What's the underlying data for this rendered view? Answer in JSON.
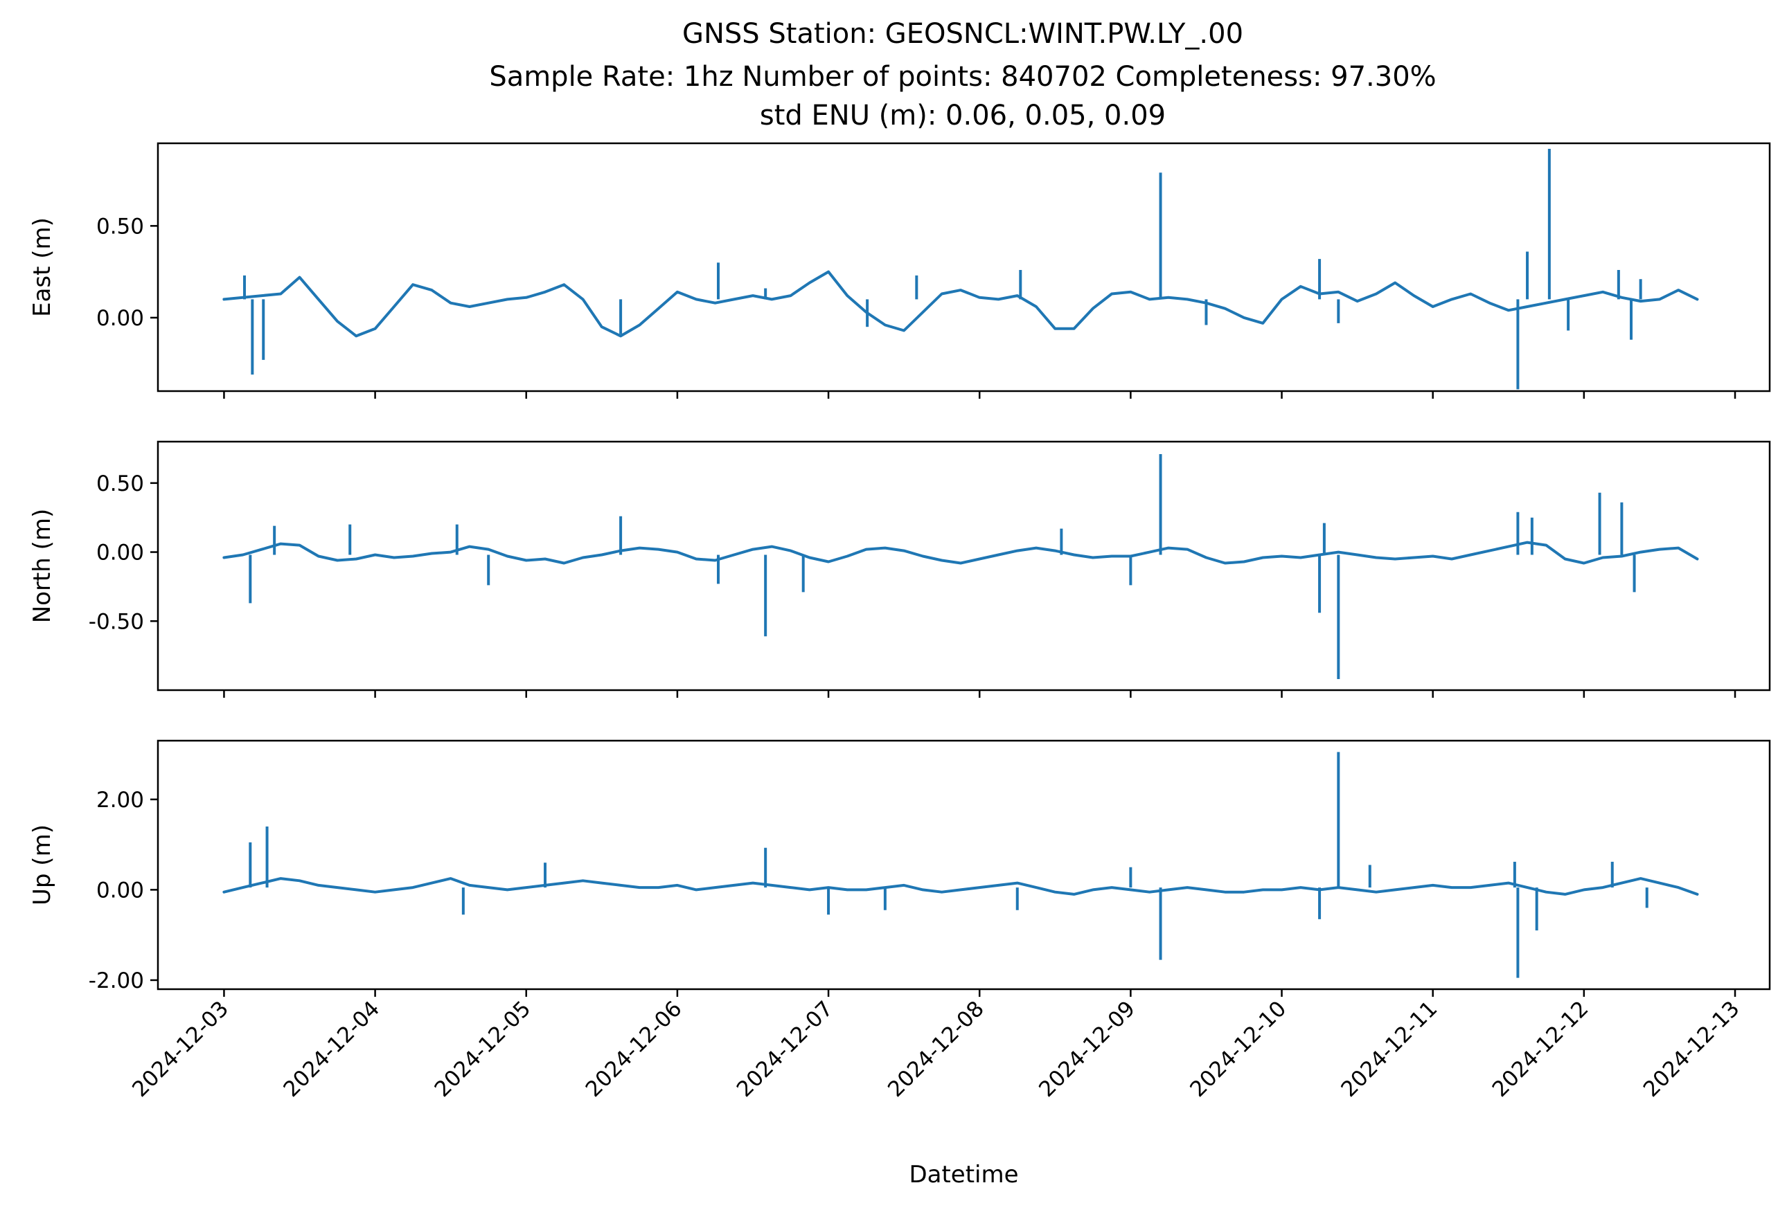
{
  "title_lines": [
    "GNSS Station: GEOSNCL:WINT.PW.LY_.00",
    "Sample Rate: 1hz   Number of points: 840702    Completeness:  97.30%",
    "std ENU (m):  0.06, 0.05, 0.09"
  ],
  "colors": {
    "series": "#1f77b4",
    "background": "#ffffff",
    "axes": "#000000"
  },
  "chart_data": [
    {
      "type": "line",
      "ylabel": "East (m)",
      "xlabel": "",
      "ylim": [
        -0.4,
        0.95
      ],
      "yticks": [
        0.0,
        0.5
      ],
      "ytick_labels": [
        "0.00",
        "0.50"
      ],
      "xlim": [
        "2024-12-02T13:30",
        "2024-12-13T05:30"
      ],
      "grid": false,
      "x": [
        "2024-12-03T00:00",
        "2024-12-03T03:00",
        "2024-12-03T06:00",
        "2024-12-03T09:00",
        "2024-12-03T12:00",
        "2024-12-03T15:00",
        "2024-12-03T18:00",
        "2024-12-03T21:00",
        "2024-12-04T00:00",
        "2024-12-04T03:00",
        "2024-12-04T06:00",
        "2024-12-04T09:00",
        "2024-12-04T12:00",
        "2024-12-04T15:00",
        "2024-12-04T18:00",
        "2024-12-04T21:00",
        "2024-12-05T00:00",
        "2024-12-05T03:00",
        "2024-12-05T06:00",
        "2024-12-05T09:00",
        "2024-12-05T12:00",
        "2024-12-05T15:00",
        "2024-12-05T18:00",
        "2024-12-05T21:00",
        "2024-12-06T00:00",
        "2024-12-06T03:00",
        "2024-12-06T06:00",
        "2024-12-06T09:00",
        "2024-12-06T12:00",
        "2024-12-06T15:00",
        "2024-12-06T18:00",
        "2024-12-06T21:00",
        "2024-12-07T00:00",
        "2024-12-07T03:00",
        "2024-12-07T06:00",
        "2024-12-07T09:00",
        "2024-12-07T12:00",
        "2024-12-07T15:00",
        "2024-12-07T18:00",
        "2024-12-07T21:00",
        "2024-12-08T00:00",
        "2024-12-08T03:00",
        "2024-12-08T06:00",
        "2024-12-08T09:00",
        "2024-12-08T12:00",
        "2024-12-08T15:00",
        "2024-12-08T18:00",
        "2024-12-08T21:00",
        "2024-12-09T00:00",
        "2024-12-09T03:00",
        "2024-12-09T06:00",
        "2024-12-09T09:00",
        "2024-12-09T12:00",
        "2024-12-09T15:00",
        "2024-12-09T18:00",
        "2024-12-09T21:00",
        "2024-12-10T00:00",
        "2024-12-10T03:00",
        "2024-12-10T06:00",
        "2024-12-10T09:00",
        "2024-12-10T12:00",
        "2024-12-10T15:00",
        "2024-12-10T18:00",
        "2024-12-10T21:00",
        "2024-12-11T00:00",
        "2024-12-11T03:00",
        "2024-12-11T06:00",
        "2024-12-11T09:00",
        "2024-12-11T12:00",
        "2024-12-11T15:00",
        "2024-12-11T18:00",
        "2024-12-11T21:00",
        "2024-12-12T00:00",
        "2024-12-12T03:00",
        "2024-12-12T06:00",
        "2024-12-12T09:00",
        "2024-12-12T12:00",
        "2024-12-12T15:00",
        "2024-12-12T18:00"
      ],
      "y": [
        0.1,
        0.11,
        0.12,
        0.13,
        0.22,
        0.1,
        -0.02,
        -0.1,
        -0.06,
        0.06,
        0.18,
        0.15,
        0.08,
        0.06,
        0.08,
        0.1,
        0.11,
        0.14,
        0.18,
        0.1,
        -0.05,
        -0.1,
        -0.04,
        0.05,
        0.14,
        0.1,
        0.08,
        0.1,
        0.12,
        0.1,
        0.12,
        0.19,
        0.25,
        0.12,
        0.03,
        -0.04,
        -0.07,
        0.03,
        0.13,
        0.15,
        0.11,
        0.1,
        0.12,
        0.06,
        -0.06,
        -0.06,
        0.05,
        0.13,
        0.14,
        0.1,
        0.11,
        0.1,
        0.08,
        0.05,
        0.0,
        -0.03,
        0.1,
        0.17,
        0.13,
        0.14,
        0.09,
        0.13,
        0.19,
        0.12,
        0.06,
        0.1,
        0.13,
        0.08,
        0.04,
        0.06,
        0.08,
        0.1,
        0.12,
        0.14,
        0.11,
        0.09,
        0.1,
        0.15,
        0.1
      ],
      "spikes": [
        {
          "x": "2024-12-03T04:30",
          "y": -0.31
        },
        {
          "x": "2024-12-03T06:15",
          "y": -0.23
        },
        {
          "x": "2024-12-03T03:15",
          "y": 0.23
        },
        {
          "x": "2024-12-05T15:00",
          "y": -0.09
        },
        {
          "x": "2024-12-06T06:30",
          "y": 0.3
        },
        {
          "x": "2024-12-06T14:00",
          "y": 0.16
        },
        {
          "x": "2024-12-07T06:10",
          "y": -0.05
        },
        {
          "x": "2024-12-07T14:00",
          "y": 0.23
        },
        {
          "x": "2024-12-08T06:30",
          "y": 0.26
        },
        {
          "x": "2024-12-09T04:45",
          "y": 0.79
        },
        {
          "x": "2024-12-09T12:00",
          "y": -0.04
        },
        {
          "x": "2024-12-10T06:00",
          "y": 0.32
        },
        {
          "x": "2024-12-10T09:00",
          "y": -0.03
        },
        {
          "x": "2024-12-11T13:30",
          "y": -0.39
        },
        {
          "x": "2024-12-11T15:00",
          "y": 0.36
        },
        {
          "x": "2024-12-11T18:30",
          "y": 0.92
        },
        {
          "x": "2024-12-11T21:30",
          "y": -0.07
        },
        {
          "x": "2024-12-12T05:30",
          "y": 0.26
        },
        {
          "x": "2024-12-12T07:30",
          "y": -0.12
        },
        {
          "x": "2024-12-12T09:00",
          "y": 0.21
        }
      ]
    },
    {
      "type": "line",
      "ylabel": "North (m)",
      "xlabel": "",
      "ylim": [
        -1.0,
        0.8
      ],
      "yticks": [
        -0.5,
        0.0,
        0.5
      ],
      "ytick_labels": [
        "-0.50",
        "0.00",
        "0.50"
      ],
      "xlim": [
        "2024-12-02T13:30",
        "2024-12-13T05:30"
      ],
      "grid": false,
      "x": [
        "2024-12-03T00:00",
        "2024-12-03T03:00",
        "2024-12-03T06:00",
        "2024-12-03T09:00",
        "2024-12-03T12:00",
        "2024-12-03T15:00",
        "2024-12-03T18:00",
        "2024-12-03T21:00",
        "2024-12-04T00:00",
        "2024-12-04T03:00",
        "2024-12-04T06:00",
        "2024-12-04T09:00",
        "2024-12-04T12:00",
        "2024-12-04T15:00",
        "2024-12-04T18:00",
        "2024-12-04T21:00",
        "2024-12-05T00:00",
        "2024-12-05T03:00",
        "2024-12-05T06:00",
        "2024-12-05T09:00",
        "2024-12-05T12:00",
        "2024-12-05T15:00",
        "2024-12-05T18:00",
        "2024-12-05T21:00",
        "2024-12-06T00:00",
        "2024-12-06T03:00",
        "2024-12-06T06:00",
        "2024-12-06T09:00",
        "2024-12-06T12:00",
        "2024-12-06T15:00",
        "2024-12-06T18:00",
        "2024-12-06T21:00",
        "2024-12-07T00:00",
        "2024-12-07T03:00",
        "2024-12-07T06:00",
        "2024-12-07T09:00",
        "2024-12-07T12:00",
        "2024-12-07T15:00",
        "2024-12-07T18:00",
        "2024-12-07T21:00",
        "2024-12-08T00:00",
        "2024-12-08T03:00",
        "2024-12-08T06:00",
        "2024-12-08T09:00",
        "2024-12-08T12:00",
        "2024-12-08T15:00",
        "2024-12-08T18:00",
        "2024-12-08T21:00",
        "2024-12-09T00:00",
        "2024-12-09T03:00",
        "2024-12-09T06:00",
        "2024-12-09T09:00",
        "2024-12-09T12:00",
        "2024-12-09T15:00",
        "2024-12-09T18:00",
        "2024-12-09T21:00",
        "2024-12-10T00:00",
        "2024-12-10T03:00",
        "2024-12-10T06:00",
        "2024-12-10T09:00",
        "2024-12-10T12:00",
        "2024-12-10T15:00",
        "2024-12-10T18:00",
        "2024-12-10T21:00",
        "2024-12-11T00:00",
        "2024-12-11T03:00",
        "2024-12-11T06:00",
        "2024-12-11T09:00",
        "2024-12-11T12:00",
        "2024-12-11T15:00",
        "2024-12-11T18:00",
        "2024-12-11T21:00",
        "2024-12-12T00:00",
        "2024-12-12T03:00",
        "2024-12-12T06:00",
        "2024-12-12T09:00",
        "2024-12-12T12:00",
        "2024-12-12T15:00",
        "2024-12-12T18:00"
      ],
      "y": [
        -0.04,
        -0.02,
        0.02,
        0.06,
        0.05,
        -0.03,
        -0.06,
        -0.05,
        -0.02,
        -0.04,
        -0.03,
        -0.01,
        0.0,
        0.04,
        0.02,
        -0.03,
        -0.06,
        -0.05,
        -0.08,
        -0.04,
        -0.02,
        0.01,
        0.03,
        0.02,
        0.0,
        -0.05,
        -0.06,
        -0.02,
        0.02,
        0.04,
        0.01,
        -0.04,
        -0.07,
        -0.03,
        0.02,
        0.03,
        0.01,
        -0.03,
        -0.06,
        -0.08,
        -0.05,
        -0.02,
        0.01,
        0.03,
        0.01,
        -0.02,
        -0.04,
        -0.03,
        -0.03,
        0.0,
        0.03,
        0.02,
        -0.04,
        -0.08,
        -0.07,
        -0.04,
        -0.03,
        -0.04,
        -0.02,
        0.0,
        -0.02,
        -0.04,
        -0.05,
        -0.04,
        -0.03,
        -0.05,
        -0.02,
        0.01,
        0.04,
        0.07,
        0.05,
        -0.05,
        -0.08,
        -0.04,
        -0.03,
        0.0,
        0.02,
        0.03,
        -0.05
      ],
      "spikes": [
        {
          "x": "2024-12-03T04:10",
          "y": -0.37
        },
        {
          "x": "2024-12-03T08:00",
          "y": 0.19
        },
        {
          "x": "2024-12-03T20:00",
          "y": 0.2
        },
        {
          "x": "2024-12-04T13:00",
          "y": 0.2
        },
        {
          "x": "2024-12-04T18:00",
          "y": -0.24
        },
        {
          "x": "2024-12-05T15:00",
          "y": 0.26
        },
        {
          "x": "2024-12-06T06:30",
          "y": -0.23
        },
        {
          "x": "2024-12-06T14:00",
          "y": -0.61
        },
        {
          "x": "2024-12-06T20:00",
          "y": -0.29
        },
        {
          "x": "2024-12-08T13:00",
          "y": 0.17
        },
        {
          "x": "2024-12-09T00:00",
          "y": -0.24
        },
        {
          "x": "2024-12-09T04:45",
          "y": 0.71
        },
        {
          "x": "2024-12-10T06:00",
          "y": -0.44
        },
        {
          "x": "2024-12-10T06:45",
          "y": 0.21
        },
        {
          "x": "2024-12-10T09:00",
          "y": -0.92
        },
        {
          "x": "2024-12-11T13:30",
          "y": 0.29
        },
        {
          "x": "2024-12-11T15:45",
          "y": 0.25
        },
        {
          "x": "2024-12-12T02:30",
          "y": 0.43
        },
        {
          "x": "2024-12-12T06:00",
          "y": 0.36
        },
        {
          "x": "2024-12-12T08:00",
          "y": -0.29
        }
      ]
    },
    {
      "type": "line",
      "ylabel": "Up (m)",
      "xlabel": "Datetime",
      "ylim": [
        -2.2,
        3.3
      ],
      "yticks": [
        -2.0,
        0.0,
        2.0
      ],
      "ytick_labels": [
        "-2.00",
        "0.00",
        "2.00"
      ],
      "xlim": [
        "2024-12-02T13:30",
        "2024-12-13T05:30"
      ],
      "xticks": [
        "2024-12-03",
        "2024-12-04",
        "2024-12-05",
        "2024-12-06",
        "2024-12-07",
        "2024-12-08",
        "2024-12-09",
        "2024-12-10",
        "2024-12-11",
        "2024-12-12",
        "2024-12-13"
      ],
      "grid": false,
      "x": [
        "2024-12-03T00:00",
        "2024-12-03T03:00",
        "2024-12-03T06:00",
        "2024-12-03T09:00",
        "2024-12-03T12:00",
        "2024-12-03T15:00",
        "2024-12-03T18:00",
        "2024-12-03T21:00",
        "2024-12-04T00:00",
        "2024-12-04T03:00",
        "2024-12-04T06:00",
        "2024-12-04T09:00",
        "2024-12-04T12:00",
        "2024-12-04T15:00",
        "2024-12-04T18:00",
        "2024-12-04T21:00",
        "2024-12-05T00:00",
        "2024-12-05T03:00",
        "2024-12-05T06:00",
        "2024-12-05T09:00",
        "2024-12-05T12:00",
        "2024-12-05T15:00",
        "2024-12-05T18:00",
        "2024-12-05T21:00",
        "2024-12-06T00:00",
        "2024-12-06T03:00",
        "2024-12-06T06:00",
        "2024-12-06T09:00",
        "2024-12-06T12:00",
        "2024-12-06T15:00",
        "2024-12-06T18:00",
        "2024-12-06T21:00",
        "2024-12-07T00:00",
        "2024-12-07T03:00",
        "2024-12-07T06:00",
        "2024-12-07T09:00",
        "2024-12-07T12:00",
        "2024-12-07T15:00",
        "2024-12-07T18:00",
        "2024-12-07T21:00",
        "2024-12-08T00:00",
        "2024-12-08T03:00",
        "2024-12-08T06:00",
        "2024-12-08T09:00",
        "2024-12-08T12:00",
        "2024-12-08T15:00",
        "2024-12-08T18:00",
        "2024-12-08T21:00",
        "2024-12-09T00:00",
        "2024-12-09T03:00",
        "2024-12-09T06:00",
        "2024-12-09T09:00",
        "2024-12-09T12:00",
        "2024-12-09T15:00",
        "2024-12-09T18:00",
        "2024-12-09T21:00",
        "2024-12-10T00:00",
        "2024-12-10T03:00",
        "2024-12-10T06:00",
        "2024-12-10T09:00",
        "2024-12-10T12:00",
        "2024-12-10T15:00",
        "2024-12-10T18:00",
        "2024-12-10T21:00",
        "2024-12-11T00:00",
        "2024-12-11T03:00",
        "2024-12-11T06:00",
        "2024-12-11T09:00",
        "2024-12-11T12:00",
        "2024-12-11T15:00",
        "2024-12-11T18:00",
        "2024-12-11T21:00",
        "2024-12-12T00:00",
        "2024-12-12T03:00",
        "2024-12-12T06:00",
        "2024-12-12T09:00",
        "2024-12-12T12:00",
        "2024-12-12T15:00",
        "2024-12-12T18:00"
      ],
      "y": [
        -0.05,
        0.05,
        0.15,
        0.25,
        0.2,
        0.1,
        0.05,
        0.0,
        -0.05,
        0.0,
        0.05,
        0.15,
        0.25,
        0.1,
        0.05,
        0.0,
        0.05,
        0.1,
        0.15,
        0.2,
        0.15,
        0.1,
        0.05,
        0.05,
        0.1,
        0.0,
        0.05,
        0.1,
        0.15,
        0.1,
        0.05,
        0.0,
        0.05,
        0.0,
        0.0,
        0.05,
        0.1,
        0.0,
        -0.05,
        0.0,
        0.05,
        0.1,
        0.15,
        0.05,
        -0.05,
        -0.1,
        0.0,
        0.05,
        0.0,
        -0.05,
        0.0,
        0.05,
        0.0,
        -0.05,
        -0.05,
        0.0,
        0.0,
        0.05,
        0.0,
        0.05,
        0.0,
        -0.05,
        0.0,
        0.05,
        0.1,
        0.05,
        0.05,
        0.1,
        0.15,
        0.05,
        -0.05,
        -0.1,
        0.0,
        0.05,
        0.15,
        0.25,
        0.15,
        0.05,
        -0.1
      ],
      "spikes": [
        {
          "x": "2024-12-03T04:10",
          "y": 1.05
        },
        {
          "x": "2024-12-03T06:50",
          "y": 1.4
        },
        {
          "x": "2024-12-04T14:00",
          "y": -0.55
        },
        {
          "x": "2024-12-05T03:00",
          "y": 0.6
        },
        {
          "x": "2024-12-06T14:00",
          "y": 0.93
        },
        {
          "x": "2024-12-07T00:00",
          "y": -0.55
        },
        {
          "x": "2024-12-07T09:00",
          "y": -0.45
        },
        {
          "x": "2024-12-08T06:00",
          "y": -0.45
        },
        {
          "x": "2024-12-09T00:00",
          "y": 0.5
        },
        {
          "x": "2024-12-09T04:45",
          "y": -1.55
        },
        {
          "x": "2024-12-10T06:00",
          "y": -0.65
        },
        {
          "x": "2024-12-10T09:00",
          "y": 3.05
        },
        {
          "x": "2024-12-10T14:00",
          "y": 0.55
        },
        {
          "x": "2024-12-11T13:30",
          "y": -1.95
        },
        {
          "x": "2024-12-11T13:00",
          "y": 0.62
        },
        {
          "x": "2024-12-11T16:30",
          "y": -0.9
        },
        {
          "x": "2024-12-12T04:30",
          "y": 0.62
        },
        {
          "x": "2024-12-12T10:00",
          "y": -0.4
        }
      ]
    }
  ]
}
